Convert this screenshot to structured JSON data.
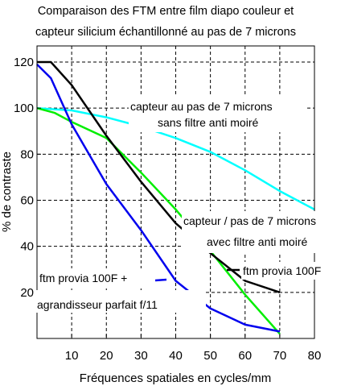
{
  "chart_data": {
    "type": "line",
    "title": [
      "Comparaison des FTM entre film diapo couleur et",
      "capteur silicium échantillonné au pas de 7 microns"
    ],
    "xlabel": "Fréquences spatiales en cycles/mm",
    "ylabel": "% de contraste",
    "xlim": [
      0,
      80
    ],
    "ylim": [
      0,
      127
    ],
    "xticks": [
      10,
      20,
      30,
      40,
      50,
      60,
      70,
      80
    ],
    "yticks": [
      20,
      40,
      60,
      80,
      100,
      120
    ],
    "grid": true,
    "series": [
      {
        "color": "#00ffff",
        "x": [
          0,
          10,
          20,
          30,
          40,
          50,
          60,
          70,
          80
        ],
        "y": [
          100,
          99,
          96,
          92,
          87,
          81,
          73,
          64,
          56
        ]
      },
      {
        "color": "#00ee00",
        "x": [
          0,
          5,
          10,
          20,
          30,
          40,
          50,
          60,
          70
        ],
        "y": [
          100,
          98,
          94,
          87,
          72,
          56,
          38,
          19,
          2
        ]
      },
      {
        "color": "#000000",
        "x": [
          0,
          4,
          10,
          20,
          30,
          40,
          50,
          60,
          70
        ],
        "y": [
          120,
          120,
          110,
          88,
          68,
          50,
          37,
          25,
          20
        ]
      },
      {
        "color": "#0000ee",
        "x": [
          0,
          4,
          10,
          20,
          30,
          40,
          50,
          60,
          70
        ],
        "y": [
          119,
          113,
          93,
          67,
          47,
          25,
          13,
          6,
          3
        ]
      }
    ],
    "annotations": [
      {
        "lines": [
          "capteur au pas de 7 microns",
          "sans filtre anti moiré"
        ],
        "color": "#00ffff"
      },
      {
        "lines": [
          "capteur / pas de 7 microns",
          "avec filtre anti moiré"
        ],
        "color": "#00ee00"
      },
      {
        "lines": [
          "ftm provia 100F"
        ],
        "color": "#000000"
      },
      {
        "lines": [
          "ftm provia 100F +",
          "agrandisseur parfait f/11"
        ],
        "color": "#0000ee"
      }
    ]
  }
}
